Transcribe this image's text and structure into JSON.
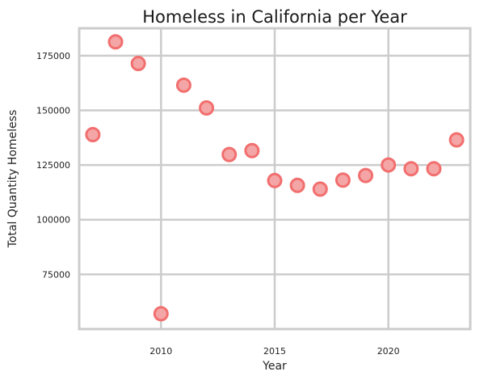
{
  "chart_data": {
    "type": "scatter",
    "title": "Homeless in California per Year",
    "xlabel": "Year",
    "ylabel": "Total Quantity Homeless",
    "xlim": [
      2006.4,
      2023.6
    ],
    "ylim": [
      50000,
      187500
    ],
    "xticks": [
      2010,
      2015,
      2020
    ],
    "yticks": [
      75000,
      100000,
      125000,
      150000,
      175000
    ],
    "grid": true,
    "marker_fill": "#f4a6a6",
    "marker_edge": "#f26f6f",
    "points": [
      {
        "x": 2007,
        "y": 138900
      },
      {
        "x": 2008,
        "y": 181300
      },
      {
        "x": 2009,
        "y": 171400
      },
      {
        "x": 2010,
        "y": 57000
      },
      {
        "x": 2011,
        "y": 161500
      },
      {
        "x": 2012,
        "y": 151100
      },
      {
        "x": 2013,
        "y": 129800
      },
      {
        "x": 2014,
        "y": 131600
      },
      {
        "x": 2015,
        "y": 117900
      },
      {
        "x": 2016,
        "y": 115700
      },
      {
        "x": 2017,
        "y": 114000
      },
      {
        "x": 2018,
        "y": 118100
      },
      {
        "x": 2019,
        "y": 120200
      },
      {
        "x": 2020,
        "y": 125000
      },
      {
        "x": 2021,
        "y": 123300
      },
      {
        "x": 2022,
        "y": 123300
      },
      {
        "x": 2023,
        "y": 136500
      }
    ]
  }
}
